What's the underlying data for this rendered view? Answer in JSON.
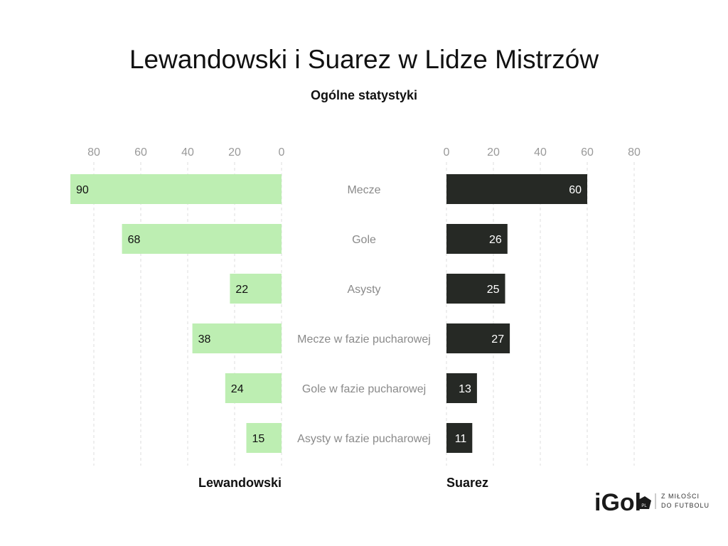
{
  "chart_data": {
    "type": "bar",
    "title": "Lewandowski i Suarez w Lidze Mistrzów",
    "subtitle": "Ogólne statystyki",
    "categories": [
      "Mecze",
      "Gole",
      "Asysty",
      "Mecze w fazie pucharowej",
      "Gole w fazie pucharowej",
      "Asysty w fazie pucharowej"
    ],
    "series": [
      {
        "name": "Lewandowski",
        "values": [
          90,
          68,
          22,
          38,
          24,
          15
        ],
        "color": "#bdeeb2",
        "label_color": "#111111"
      },
      {
        "name": "Suarez",
        "values": [
          60,
          26,
          25,
          27,
          13,
          11
        ],
        "color": "#262925",
        "label_color": "#ffffff"
      }
    ],
    "ticks": [
      0,
      20,
      40,
      60,
      80
    ],
    "xlim": [
      0,
      90
    ],
    "grid": true
  },
  "logo": {
    "text": "iGol",
    "badge": "PL",
    "tagline_1": "Z MIŁOŚCI",
    "tagline_2": "DO FUTBOLU"
  }
}
